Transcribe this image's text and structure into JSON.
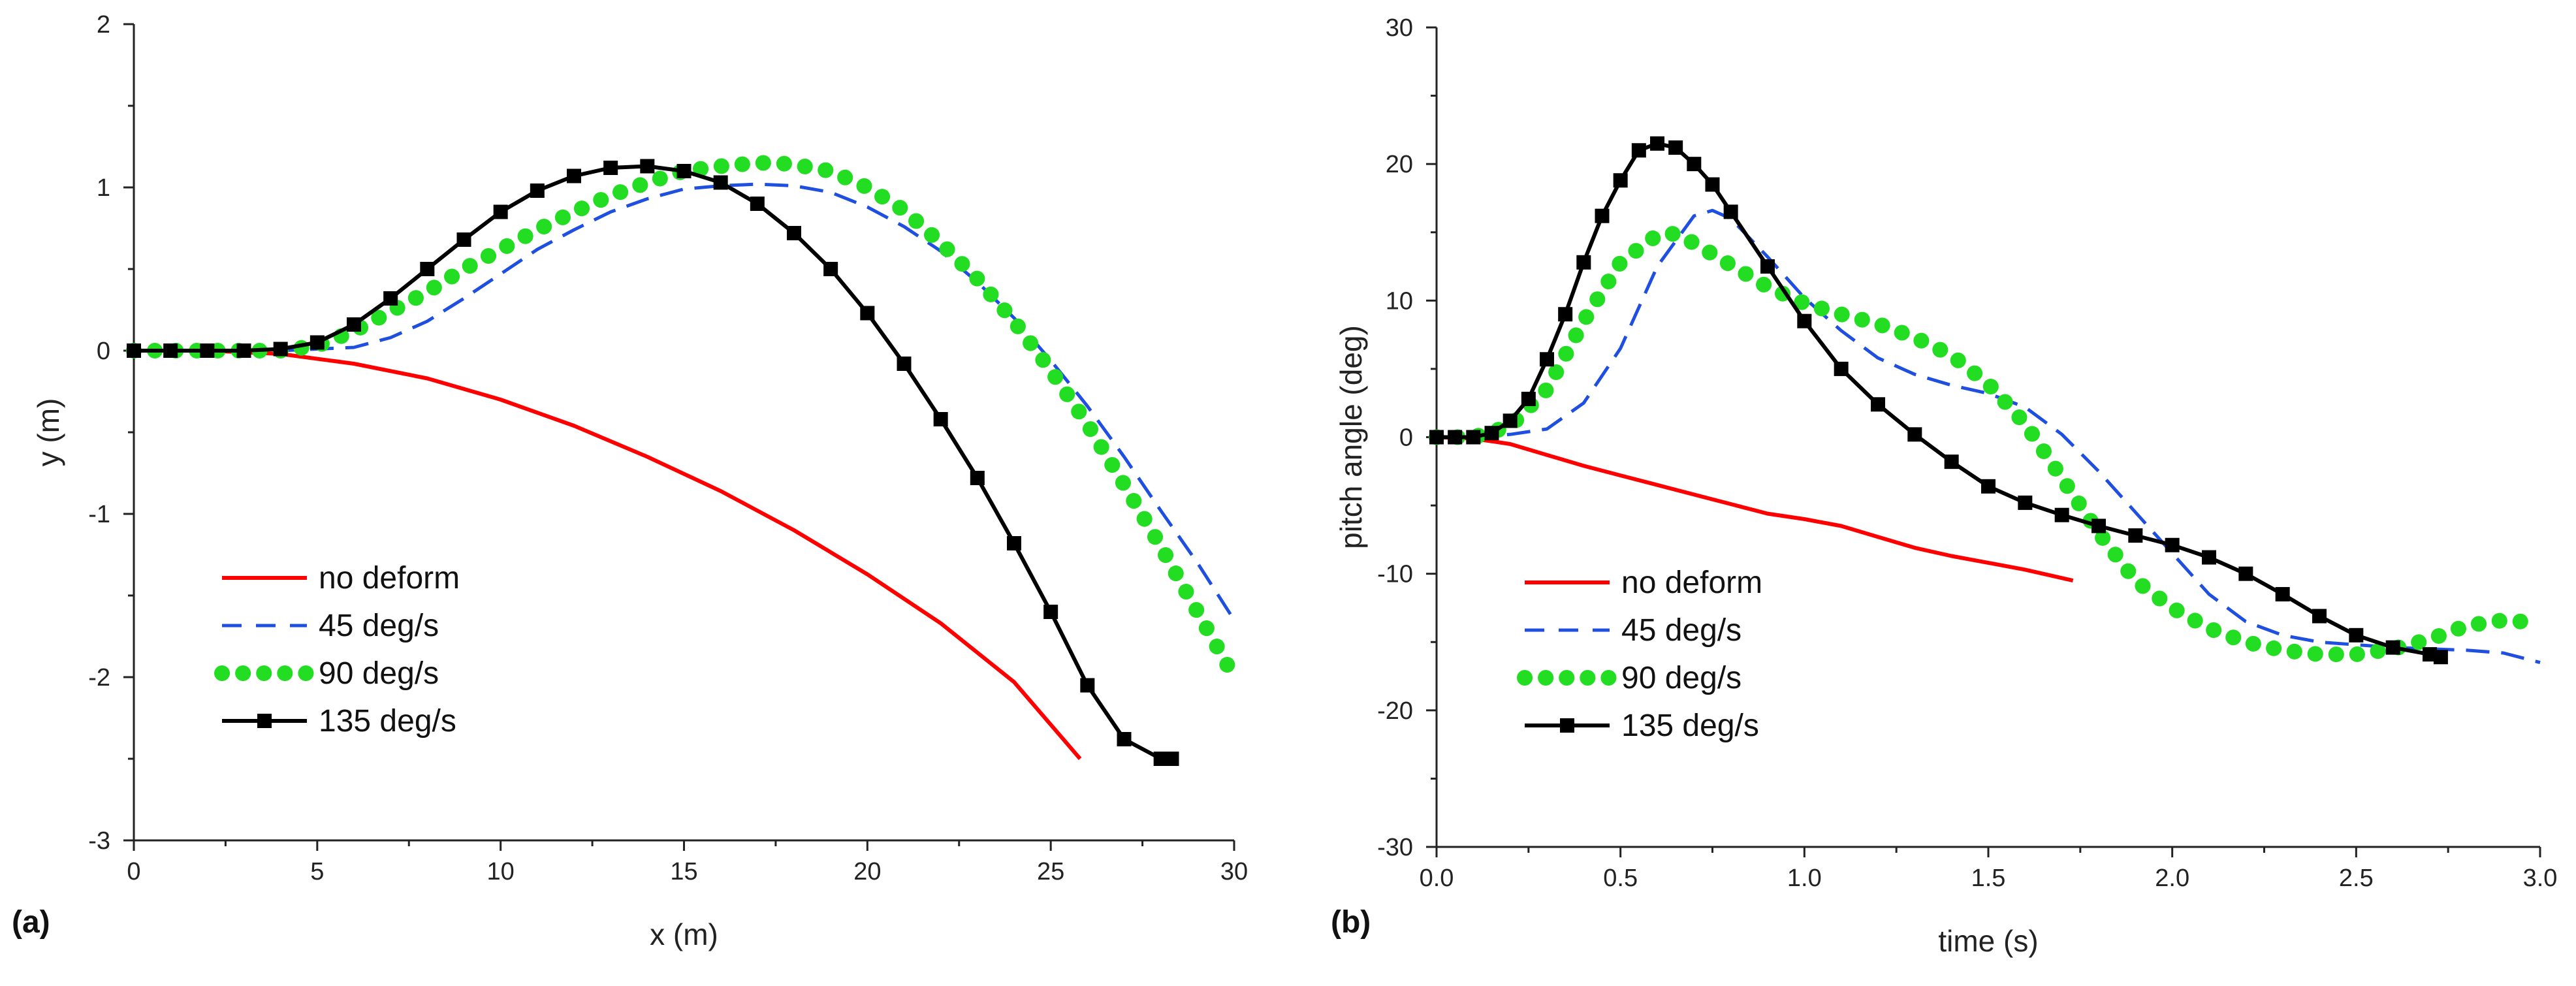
{
  "chart_data": [
    {
      "type": "line",
      "panel_label": "(a)",
      "title": "",
      "xlabel": "x (m)",
      "ylabel": "y (m)",
      "xlim": [
        0,
        30
      ],
      "ylim": [
        -3,
        2
      ],
      "xticks": [
        0,
        5,
        10,
        15,
        20,
        25,
        30
      ],
      "yticks": [
        -3,
        -2,
        -1,
        0,
        1,
        2
      ],
      "xtick_labels": [
        "0",
        "5",
        "10",
        "15",
        "20",
        "25",
        "30"
      ],
      "ytick_labels": [
        "-3",
        "-2",
        "-1",
        "0",
        "1",
        "2"
      ],
      "grid": false,
      "legend_position": "lower-left",
      "series": [
        {
          "name": "no deform",
          "color": "#ff0000",
          "style": "solid",
          "x": [
            0,
            2,
            4,
            6,
            8,
            10,
            12,
            14,
            16,
            18,
            20,
            22,
            24,
            25.8
          ],
          "y": [
            0,
            0,
            -0.02,
            -0.08,
            -0.17,
            -0.3,
            -0.46,
            -0.65,
            -0.86,
            -1.1,
            -1.37,
            -1.67,
            -2.03,
            -2.5
          ]
        },
        {
          "name": "45 deg/s",
          "color": "#1f4fe0",
          "style": "dashed",
          "x": [
            0,
            2,
            4,
            5,
            6,
            7,
            8,
            9,
            10,
            11,
            12,
            13,
            14,
            15,
            16,
            17,
            18,
            19,
            20,
            21,
            22,
            23,
            24,
            25,
            26,
            27,
            28,
            29,
            30
          ],
          "y": [
            0,
            0,
            0,
            0.01,
            0.02,
            0.08,
            0.18,
            0.32,
            0.47,
            0.62,
            0.74,
            0.85,
            0.93,
            0.99,
            1.01,
            1.02,
            1.01,
            0.97,
            0.88,
            0.76,
            0.61,
            0.42,
            0.2,
            -0.06,
            -0.34,
            -0.65,
            -0.98,
            -1.3,
            -1.65
          ]
        },
        {
          "name": "90 deg/s",
          "color": "#22dd22",
          "style": "dotted",
          "x": [
            0,
            2,
            4,
            5,
            6,
            7,
            8,
            9,
            10,
            11,
            12,
            13,
            14,
            15,
            16,
            17,
            17.5,
            18,
            19,
            20,
            21,
            22,
            23,
            24,
            25,
            26,
            27,
            28,
            29,
            30
          ],
          "y": [
            0,
            0,
            0,
            0.03,
            0.12,
            0.24,
            0.36,
            0.5,
            0.62,
            0.74,
            0.85,
            0.95,
            1.03,
            1.1,
            1.13,
            1.15,
            1.15,
            1.14,
            1.1,
            1.0,
            0.86,
            0.66,
            0.44,
            0.18,
            -0.12,
            -0.45,
            -0.82,
            -1.2,
            -1.6,
            -2.0
          ]
        },
        {
          "name": "135 deg/s",
          "color": "#000000",
          "style": "solid-square",
          "x": [
            0,
            1,
            2,
            3,
            4,
            5,
            6,
            7,
            8,
            9,
            10,
            11,
            12,
            13,
            14,
            15,
            16,
            17,
            18,
            19,
            20,
            21,
            22,
            23,
            24,
            25,
            26,
            27,
            28,
            28.3
          ],
          "y": [
            0,
            0,
            0,
            0,
            0.01,
            0.05,
            0.16,
            0.32,
            0.5,
            0.68,
            0.85,
            0.98,
            1.07,
            1.12,
            1.13,
            1.1,
            1.03,
            0.9,
            0.72,
            0.5,
            0.23,
            -0.08,
            -0.42,
            -0.78,
            -1.18,
            -1.6,
            -2.05,
            -2.38,
            -2.5,
            -2.5
          ]
        }
      ]
    },
    {
      "type": "line",
      "panel_label": "(b)",
      "title": "",
      "xlabel": "time (s)",
      "ylabel": "pitch angle (deg)",
      "xlim": [
        0,
        3
      ],
      "ylim": [
        -30,
        30
      ],
      "xticks": [
        0,
        0.5,
        1,
        1.5,
        2,
        2.5,
        3
      ],
      "yticks": [
        -30,
        -20,
        -10,
        0,
        10,
        20,
        30
      ],
      "xtick_labels": [
        "0.0",
        "0.5",
        "1.0",
        "1.5",
        "2.0",
        "2.5",
        "3.0"
      ],
      "ytick_labels": [
        "-30",
        "-20",
        "-10",
        "0",
        "10",
        "20",
        "30"
      ],
      "grid": false,
      "legend_position": "lower-left",
      "series": [
        {
          "name": "no deform",
          "color": "#ff0000",
          "style": "solid",
          "x": [
            0,
            0.1,
            0.2,
            0.3,
            0.4,
            0.5,
            0.6,
            0.7,
            0.8,
            0.9,
            1.0,
            1.1,
            1.2,
            1.3,
            1.4,
            1.5,
            1.6,
            1.73
          ],
          "y": [
            0,
            -0.1,
            -0.5,
            -1.3,
            -2.1,
            -2.8,
            -3.5,
            -4.2,
            -4.9,
            -5.6,
            -6.0,
            -6.5,
            -7.3,
            -8.1,
            -8.7,
            -9.2,
            -9.7,
            -10.5
          ]
        },
        {
          "name": "45 deg/s",
          "color": "#1f4fe0",
          "style": "dashed",
          "x": [
            0,
            0.1,
            0.2,
            0.3,
            0.4,
            0.5,
            0.6,
            0.7,
            0.75,
            0.8,
            0.9,
            1.0,
            1.1,
            1.2,
            1.3,
            1.4,
            1.5,
            1.6,
            1.7,
            1.8,
            1.9,
            2.0,
            2.1,
            2.2,
            2.3,
            2.4,
            2.5,
            2.6,
            2.7,
            2.8,
            2.9,
            3.0
          ],
          "y": [
            0,
            0,
            0.2,
            0.6,
            2.5,
            6.5,
            12.5,
            16.2,
            16.6,
            16.0,
            13.2,
            10.2,
            7.8,
            5.8,
            4.6,
            3.8,
            3.2,
            2.2,
            0.2,
            -2.5,
            -5.5,
            -8.5,
            -11.5,
            -13.5,
            -14.5,
            -15.0,
            -15.2,
            -15.4,
            -15.5,
            -15.6,
            -15.8,
            -16.5
          ]
        },
        {
          "name": "90 deg/s",
          "color": "#22dd22",
          "style": "dotted",
          "x": [
            0,
            0.1,
            0.2,
            0.3,
            0.4,
            0.5,
            0.6,
            0.65,
            0.7,
            0.8,
            0.9,
            1.0,
            1.1,
            1.2,
            1.3,
            1.4,
            1.5,
            1.6,
            1.7,
            1.8,
            1.9,
            2.0,
            2.1,
            2.2,
            2.3,
            2.4,
            2.5,
            2.6,
            2.7,
            2.8,
            2.9,
            2.95
          ],
          "y": [
            0,
            0,
            0.8,
            3.5,
            8.5,
            12.8,
            14.8,
            14.9,
            14.2,
            12.6,
            11.0,
            9.8,
            9.0,
            8.3,
            7.3,
            6.0,
            3.9,
            1.0,
            -3.0,
            -7.0,
            -10.5,
            -12.5,
            -14.0,
            -15.0,
            -15.6,
            -15.9,
            -15.9,
            -15.5,
            -14.8,
            -13.8,
            -13.4,
            -13.5
          ]
        },
        {
          "name": "135 deg/s",
          "color": "#000000",
          "style": "solid-square",
          "x": [
            0,
            0.05,
            0.1,
            0.15,
            0.2,
            0.25,
            0.3,
            0.35,
            0.4,
            0.45,
            0.5,
            0.55,
            0.6,
            0.65,
            0.7,
            0.75,
            0.8,
            0.9,
            1.0,
            1.1,
            1.2,
            1.3,
            1.4,
            1.5,
            1.6,
            1.7,
            1.8,
            1.9,
            2.0,
            2.1,
            2.2,
            2.3,
            2.4,
            2.5,
            2.6,
            2.7,
            2.73
          ],
          "y": [
            0,
            0,
            0,
            0.3,
            1.2,
            2.8,
            5.7,
            9.0,
            12.8,
            16.2,
            18.8,
            21.0,
            21.5,
            21.2,
            20.0,
            18.5,
            16.5,
            12.5,
            8.5,
            5.0,
            2.4,
            0.2,
            -1.8,
            -3.6,
            -4.8,
            -5.7,
            -6.5,
            -7.2,
            -7.9,
            -8.8,
            -10.0,
            -11.5,
            -13.1,
            -14.5,
            -15.4,
            -15.9,
            -16.1
          ]
        }
      ]
    }
  ]
}
